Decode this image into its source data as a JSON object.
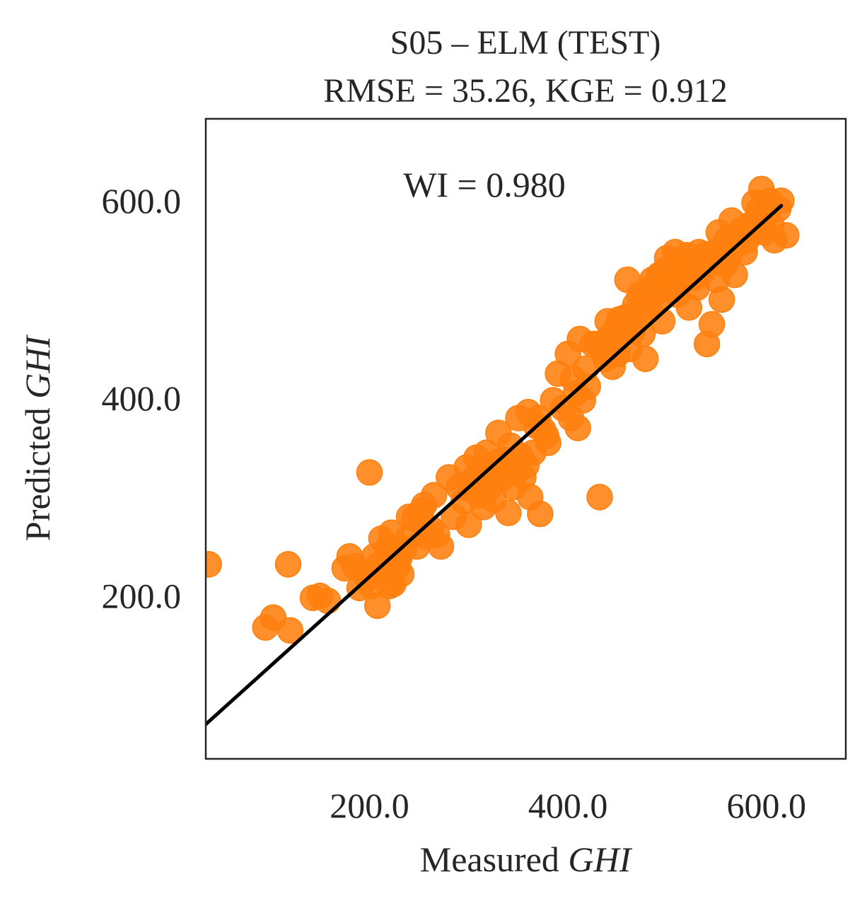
{
  "chart_data": {
    "type": "scatter",
    "title_line1": "S05 – ELM (TEST)",
    "title_line2": "RMSE = 35.26, KGE = 0.912",
    "annotation": "WI = 0.980",
    "xlabel_prefix": "Measured ",
    "xlabel_italic": "GHI",
    "ylabel_prefix": "Predicted ",
    "ylabel_italic": "GHI",
    "xlim": [
      35,
      680
    ],
    "ylim": [
      35,
      683
    ],
    "xticks": [
      200,
      400,
      600
    ],
    "xtick_labels": [
      "200.0",
      "400.0",
      "600.0"
    ],
    "yticks": [
      200,
      400,
      600
    ],
    "ytick_labels": [
      "200.0",
      "400.0",
      "600.0"
    ],
    "grid": false,
    "point_color": "#ff7f0e",
    "line_color": "#000000",
    "fit_line": {
      "x": [
        35,
        615
      ],
      "y": [
        70,
        595
      ]
    },
    "points": {
      "x": [
        38,
        95,
        103,
        118,
        120,
        143,
        150,
        158,
        175,
        180,
        185,
        190,
        195,
        198,
        200,
        202,
        205,
        208,
        210,
        212,
        215,
        218,
        220,
        222,
        224,
        226,
        228,
        230,
        232,
        235,
        238,
        240,
        245,
        248,
        252,
        255,
        258,
        262,
        265,
        268,
        272,
        280,
        285,
        290,
        295,
        298,
        300,
        302,
        305,
        308,
        310,
        312,
        315,
        318,
        320,
        322,
        325,
        328,
        330,
        332,
        335,
        338,
        340,
        342,
        345,
        348,
        350,
        352,
        355,
        358,
        360,
        362,
        365,
        368,
        370,
        372,
        375,
        378,
        380,
        385,
        390,
        395,
        400,
        403,
        405,
        408,
        410,
        412,
        415,
        418,
        420,
        425,
        430,
        432,
        435,
        438,
        440,
        442,
        445,
        448,
        450,
        452,
        455,
        458,
        460,
        462,
        465,
        468,
        470,
        472,
        475,
        478,
        480,
        482,
        485,
        488,
        490,
        492,
        495,
        498,
        500,
        502,
        505,
        508,
        510,
        512,
        515,
        518,
        520,
        522,
        525,
        528,
        530,
        532,
        535,
        538,
        540,
        545,
        548,
        550,
        552,
        555,
        558,
        560,
        562,
        565,
        568,
        570,
        572,
        575,
        578,
        580,
        582,
        585,
        588,
        590,
        592,
        595,
        598,
        600,
        603,
        605,
        608,
        612,
        615,
        620
      ],
      "y": [
        232,
        168,
        178,
        232,
        165,
        198,
        200,
        195,
        228,
        240,
        230,
        208,
        222,
        218,
        325,
        210,
        240,
        190,
        232,
        258,
        220,
        248,
        210,
        264,
        212,
        245,
        230,
        238,
        222,
        248,
        258,
        280,
        278,
        250,
        286,
        292,
        260,
        268,
        302,
        262,
        250,
        320,
        280,
        310,
        296,
        330,
        272,
        308,
        318,
        340,
        302,
        326,
        290,
        345,
        308,
        320,
        298,
        335,
        365,
        318,
        338,
        330,
        284,
        352,
        310,
        326,
        380,
        342,
        320,
        332,
        386,
        300,
        345,
        372,
        380,
        283,
        368,
        362,
        355,
        398,
        425,
        390,
        445,
        380,
        420,
        405,
        370,
        460,
        398,
        430,
        412,
        455,
        455,
        300,
        448,
        440,
        478,
        462,
        432,
        470,
        445,
        480,
        470,
        482,
        520,
        450,
        468,
        495,
        488,
        505,
        465,
        440,
        510,
        490,
        520,
        498,
        508,
        525,
        478,
        530,
        542,
        510,
        522,
        548,
        505,
        538,
        518,
        530,
        545,
        492,
        532,
        522,
        512,
        548,
        528,
        545,
        455,
        475,
        548,
        520,
        568,
        500,
        535,
        560,
        542,
        580,
        525,
        555,
        565,
        570,
        548,
        560,
        575,
        568,
        598,
        580,
        590,
        612,
        568,
        585,
        600,
        575,
        560,
        592,
        600,
        565
      ]
    }
  }
}
